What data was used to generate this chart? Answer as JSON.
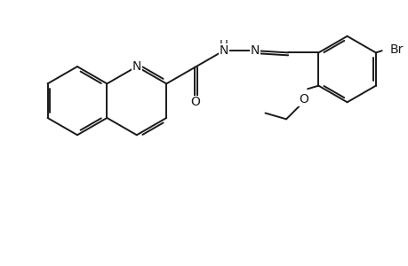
{
  "background_color": "#ffffff",
  "line_color": "#1a1a1a",
  "line_width": 1.4,
  "font_size": 10,
  "fig_width": 4.6,
  "fig_height": 3.0,
  "dpi": 100,
  "xlim": [
    -0.3,
    9.8
  ],
  "ylim": [
    0.8,
    6.5
  ]
}
